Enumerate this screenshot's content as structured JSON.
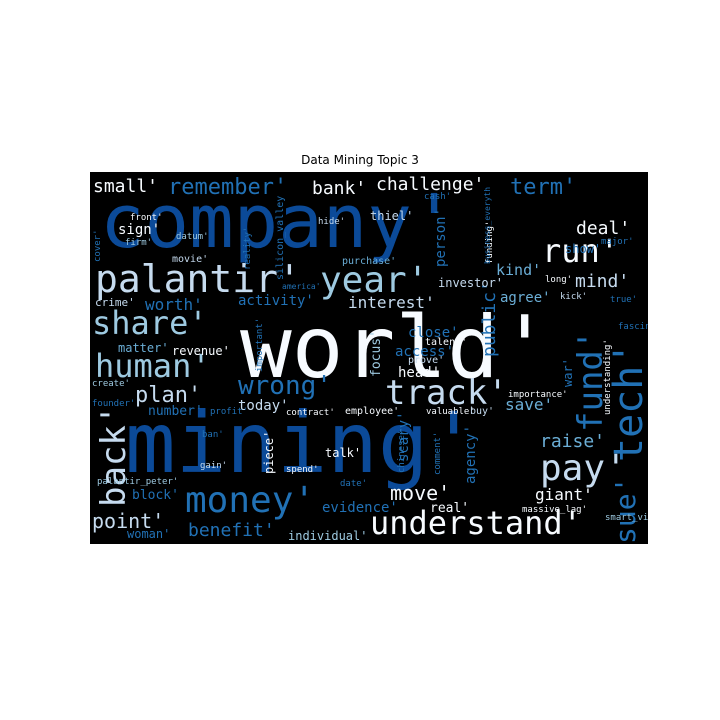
{
  "figure": {
    "title": "Data Mining Topic 3",
    "background": "#000000",
    "page_background": "#ffffff",
    "colormap": [
      "#08306b",
      "#08519c",
      "#2171b5",
      "#4292c6",
      "#6baed6",
      "#9ecae1",
      "#c6dbef",
      "#f7fbff"
    ]
  },
  "words": [
    {
      "text": "company'",
      "color": "#0b4a98"
    },
    {
      "text": "world'",
      "color": "#f7fbff"
    },
    {
      "text": "mining'",
      "color": "#0b4a98"
    },
    {
      "text": "palantir'",
      "color": "#c6dbef"
    },
    {
      "text": "year'",
      "color": "#9ecae1"
    },
    {
      "text": "share'",
      "color": "#9ecae1"
    },
    {
      "text": "human'",
      "color": "#9ecae1"
    },
    {
      "text": "tech'",
      "color": "#2171b5"
    },
    {
      "text": "money'",
      "color": "#2171b5"
    },
    {
      "text": "understand'",
      "color": "#f7fbff"
    },
    {
      "text": "track'",
      "color": "#c6dbef"
    },
    {
      "text": "pay'",
      "color": "#c6dbef"
    },
    {
      "text": "fund'",
      "color": "#2171b5"
    },
    {
      "text": "run'",
      "color": "#f7fbff"
    },
    {
      "text": "wrong'",
      "color": "#2171b5"
    },
    {
      "text": "back'",
      "color": "#c6dbef"
    },
    {
      "text": "sue'",
      "color": "#2171b5"
    },
    {
      "text": "remember'",
      "color": "#2171b5"
    },
    {
      "text": "small'",
      "color": "#f7fbff"
    },
    {
      "text": "bank'",
      "color": "#f7fbff"
    },
    {
      "text": "challenge'",
      "color": "#f7fbff"
    },
    {
      "text": "term'",
      "color": "#2171b5"
    },
    {
      "text": "deal'",
      "color": "#f7fbff"
    },
    {
      "text": "mind'",
      "color": "#c6dbef"
    },
    {
      "text": "kind'",
      "color": "#6baed6"
    },
    {
      "text": "plan'",
      "color": "#c6dbef"
    },
    {
      "text": "worth'",
      "color": "#2171b5"
    },
    {
      "text": "point'",
      "color": "#c6dbef"
    },
    {
      "text": "benefit'",
      "color": "#2171b5"
    },
    {
      "text": "move'",
      "color": "#f7fbff"
    },
    {
      "text": "giant'",
      "color": "#f7fbff"
    },
    {
      "text": "raise'",
      "color": "#6baed6"
    },
    {
      "text": "save'",
      "color": "#6baed6"
    },
    {
      "text": "public'",
      "color": "#2171b5"
    },
    {
      "text": "agree'",
      "color": "#6baed6"
    },
    {
      "text": "interest'",
      "color": "#c6dbef"
    },
    {
      "text": "activity'",
      "color": "#2171b5"
    },
    {
      "text": "access'",
      "color": "#2171b5"
    },
    {
      "text": "close'",
      "color": "#2171b5"
    },
    {
      "text": "head'",
      "color": "#f7fbff"
    },
    {
      "text": "today'",
      "color": "#c6dbef"
    },
    {
      "text": "number'",
      "color": "#2171b5"
    },
    {
      "text": "block'",
      "color": "#2171b5"
    },
    {
      "text": "woman'",
      "color": "#2171b5"
    },
    {
      "text": "evidence'",
      "color": "#2171b5"
    },
    {
      "text": "individual'",
      "color": "#9ecae1"
    },
    {
      "text": "real'",
      "color": "#f7fbff"
    },
    {
      "text": "agency'",
      "color": "#2171b5"
    },
    {
      "text": "scary'",
      "color": "#2171b5"
    },
    {
      "text": "talk'",
      "color": "#f7fbff"
    },
    {
      "text": "piece'",
      "color": "#f7fbff"
    },
    {
      "text": "focus'",
      "color": "#9ecae1"
    },
    {
      "text": "person'",
      "color": "#2171b5"
    },
    {
      "text": "investor'",
      "color": "#c6dbef"
    },
    {
      "text": "thiel'",
      "color": "#c6dbef"
    },
    {
      "text": "sign'",
      "color": "#f7fbff"
    },
    {
      "text": "show'",
      "color": "#2171b5"
    },
    {
      "text": "crime'",
      "color": "#c6dbef"
    },
    {
      "text": "matter'",
      "color": "#6baed6"
    },
    {
      "text": "revenue'",
      "color": "#f7fbff"
    },
    {
      "text": "war'",
      "color": "#2171b5"
    },
    {
      "text": "movie'",
      "color": "#c6dbef"
    },
    {
      "text": "reality'",
      "color": "#2171b5"
    },
    {
      "text": "purchase'",
      "color": "#6baed6"
    },
    {
      "text": "datum'",
      "color": "#9ecae1"
    },
    {
      "text": "front'",
      "color": "#f7fbff"
    },
    {
      "text": "firm'",
      "color": "#9ecae1"
    },
    {
      "text": "silicon_valley",
      "color": "#2171b5"
    },
    {
      "text": "hide'",
      "color": "#c6dbef"
    },
    {
      "text": "funding'",
      "color": "#f7fbff"
    },
    {
      "text": "cash'",
      "color": "#2171b5"
    },
    {
      "text": "america'",
      "color": "#2171b5"
    },
    {
      "text": "cover'",
      "color": "#2171b5"
    },
    {
      "text": "long'",
      "color": "#f7fbff"
    },
    {
      "text": "kick'",
      "color": "#c6dbef"
    },
    {
      "text": "true'",
      "color": "#2171b5"
    },
    {
      "text": "major'",
      "color": "#2171b5"
    },
    {
      "text": "fascinating'",
      "color": "#2171b5"
    },
    {
      "text": "talent'",
      "color": "#f7fbff"
    },
    {
      "text": "prove'",
      "color": "#c6dbef"
    },
    {
      "text": "important'",
      "color": "#2171b5"
    },
    {
      "text": "create'",
      "color": "#9ecae1"
    },
    {
      "text": "founder'",
      "color": "#2171b5"
    },
    {
      "text": "profit'",
      "color": "#2171b5"
    },
    {
      "text": "contract'",
      "color": "#f7fbff"
    },
    {
      "text": "employee'",
      "color": "#f7fbff"
    },
    {
      "text": "valuable'",
      "color": "#f7fbff"
    },
    {
      "text": "buy'",
      "color": "#c6dbef"
    },
    {
      "text": "importance'",
      "color": "#f7fbff"
    },
    {
      "text": "understanding'",
      "color": "#f7fbff"
    },
    {
      "text": "ban'",
      "color": "#2171b5"
    },
    {
      "text": "gain'",
      "color": "#c6dbef"
    },
    {
      "text": "spend'",
      "color": "#f7fbff"
    },
    {
      "text": "date'",
      "color": "#2171b5"
    },
    {
      "text": "chinese'",
      "color": "#2171b5"
    },
    {
      "text": "comment'",
      "color": "#2171b5"
    },
    {
      "text": "massive_lag'",
      "color": "#f7fbff"
    },
    {
      "text": "smart_vibrator'",
      "color": "#9ecae1"
    },
    {
      "text": "palantir_peter'",
      "color": "#9ecae1"
    },
    {
      "text": "business_everyth",
      "color": "#2171b5"
    }
  ]
}
